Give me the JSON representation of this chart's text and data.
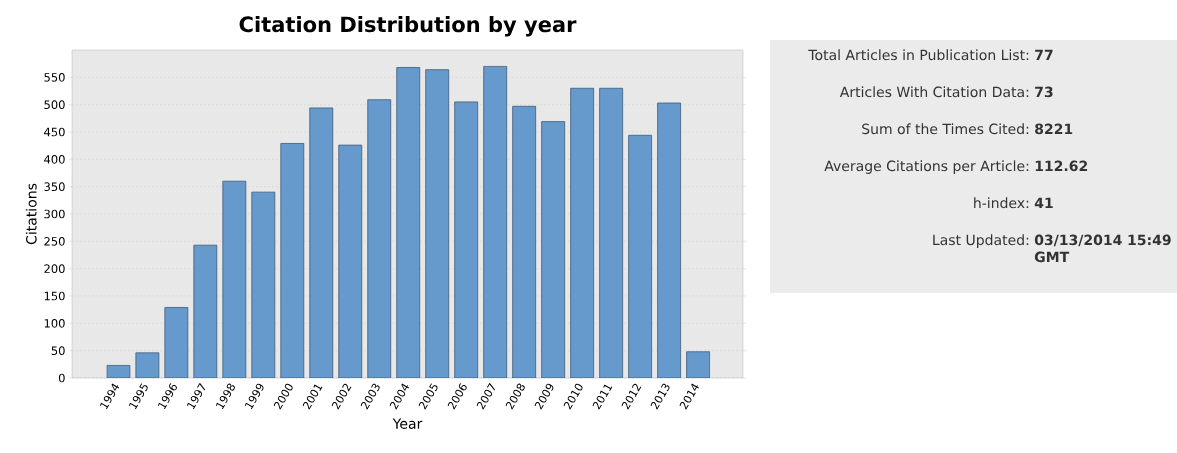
{
  "chart_data": [
    {
      "type": "bar",
      "title": "Citation Distribution by year",
      "xlabel": "Year",
      "ylabel": "Citations",
      "categories": [
        "1994",
        "1995",
        "1996",
        "1997",
        "1998",
        "1999",
        "2000",
        "2001",
        "2002",
        "2003",
        "2004",
        "2005",
        "2006",
        "2007",
        "2008",
        "2009",
        "2010",
        "2011",
        "2012",
        "2013",
        "2014"
      ],
      "values": [
        23,
        46,
        129,
        243,
        360,
        340,
        429,
        494,
        426,
        509,
        568,
        564,
        505,
        570,
        497,
        469,
        530,
        530,
        444,
        503,
        48
      ],
      "color": "#6699cc",
      "ylim": [
        0,
        600
      ],
      "yticks": [
        0,
        50,
        100,
        150,
        200,
        250,
        300,
        350,
        400,
        450,
        500,
        550
      ],
      "grid": "y"
    },
    {
      "type": "other",
      "annotations": [
        "Total Articles in Publication List:",
        "77",
        "Articles With Citation Data:",
        "73",
        "Sum of the Times Cited:",
        "8221",
        "Average Citations per Article:",
        "112.62",
        "h-index:",
        "41",
        "Last Updated:",
        "03/13/2014 15:49 GMT"
      ]
    }
  ]
}
